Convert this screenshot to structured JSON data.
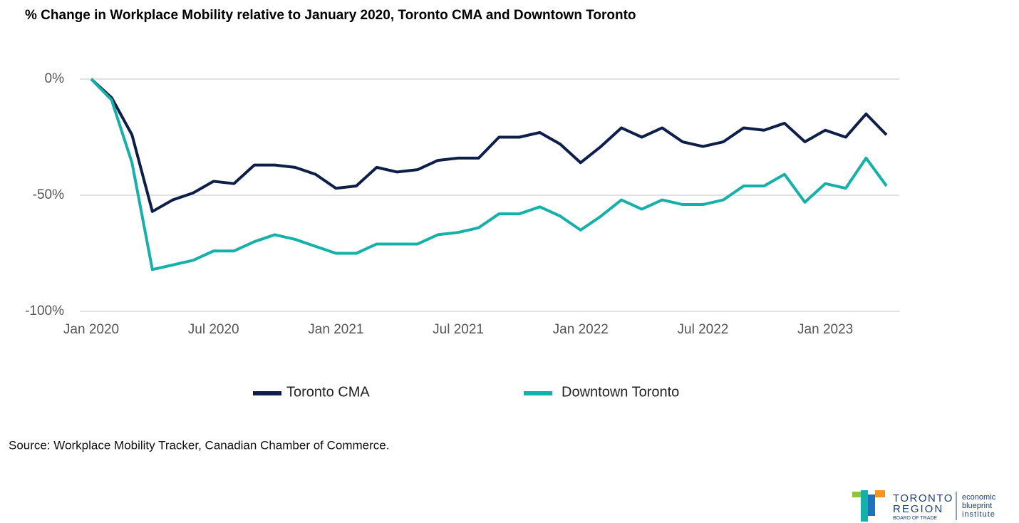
{
  "chart_data": {
    "type": "line",
    "title": "% Change in Workplace Mobility relative to January 2020, Toronto CMA and Downtown Toronto",
    "x": [
      "2020-01",
      "2020-02",
      "2020-03",
      "2020-04",
      "2020-05",
      "2020-06",
      "2020-07",
      "2020-08",
      "2020-09",
      "2020-10",
      "2020-11",
      "2020-12",
      "2021-01",
      "2021-02",
      "2021-03",
      "2021-04",
      "2021-05",
      "2021-06",
      "2021-07",
      "2021-08",
      "2021-09",
      "2021-10",
      "2021-11",
      "2021-12",
      "2022-01",
      "2022-02",
      "2022-03",
      "2022-04",
      "2022-05",
      "2022-06",
      "2022-07",
      "2022-08",
      "2022-09",
      "2022-10",
      "2022-11",
      "2022-12",
      "2023-01",
      "2023-02",
      "2023-03",
      "2023-04"
    ],
    "series": [
      {
        "name": "Toronto CMA",
        "color": "#0e1e4a",
        "values": [
          0,
          -8,
          -24,
          -57,
          -52,
          -49,
          -44,
          -45,
          -37,
          -37,
          -38,
          -41,
          -47,
          -46,
          -38,
          -40,
          -39,
          -35,
          -34,
          -34,
          -25,
          -25,
          -23,
          -28,
          -36,
          -29,
          -21,
          -25,
          -21,
          -27,
          -29,
          -27,
          -21,
          -22,
          -19,
          -27,
          -22,
          -25,
          -15,
          -24
        ]
      },
      {
        "name": "Downtown Toronto",
        "color": "#16b0aa",
        "values": [
          0,
          -9,
          -36,
          -82,
          -80,
          -78,
          -74,
          -74,
          -70,
          -67,
          -69,
          -72,
          -75,
          -75,
          -71,
          -71,
          -71,
          -67,
          -66,
          -64,
          -58,
          -58,
          -55,
          -59,
          -65,
          -59,
          -52,
          -56,
          -52,
          -54,
          -54,
          -52,
          -46,
          -46,
          -41,
          -53,
          -45,
          -47,
          -34,
          -46
        ]
      }
    ],
    "xlim": [
      "2020-01",
      "2023-04"
    ],
    "xticks": [
      {
        "value": "2020-01",
        "label": "Jan 2020"
      },
      {
        "value": "2020-07",
        "label": "Jul 2020"
      },
      {
        "value": "2021-01",
        "label": "Jan 2021"
      },
      {
        "value": "2021-07",
        "label": "Jul 2021"
      },
      {
        "value": "2022-01",
        "label": "Jan 2022"
      },
      {
        "value": "2022-07",
        "label": "Jul 2022"
      },
      {
        "value": "2023-01",
        "label": "Jan 2023"
      }
    ],
    "ylim": [
      -100,
      0
    ],
    "yticks": [
      {
        "value": 0,
        "label": "0%"
      },
      {
        "value": -50,
        "label": "-50%"
      },
      {
        "value": -100,
        "label": "-100%"
      }
    ],
    "grid": true,
    "legend": "bottom",
    "source": "Source: Workplace Mobility Tracker, Canadian Chamber of Commerce."
  },
  "logo": {
    "line1": "TORONTO",
    "line2": "REGION",
    "line3": "BOARD OF TRADE",
    "right1": "economic",
    "right2": "blueprint",
    "right3": "institute"
  }
}
